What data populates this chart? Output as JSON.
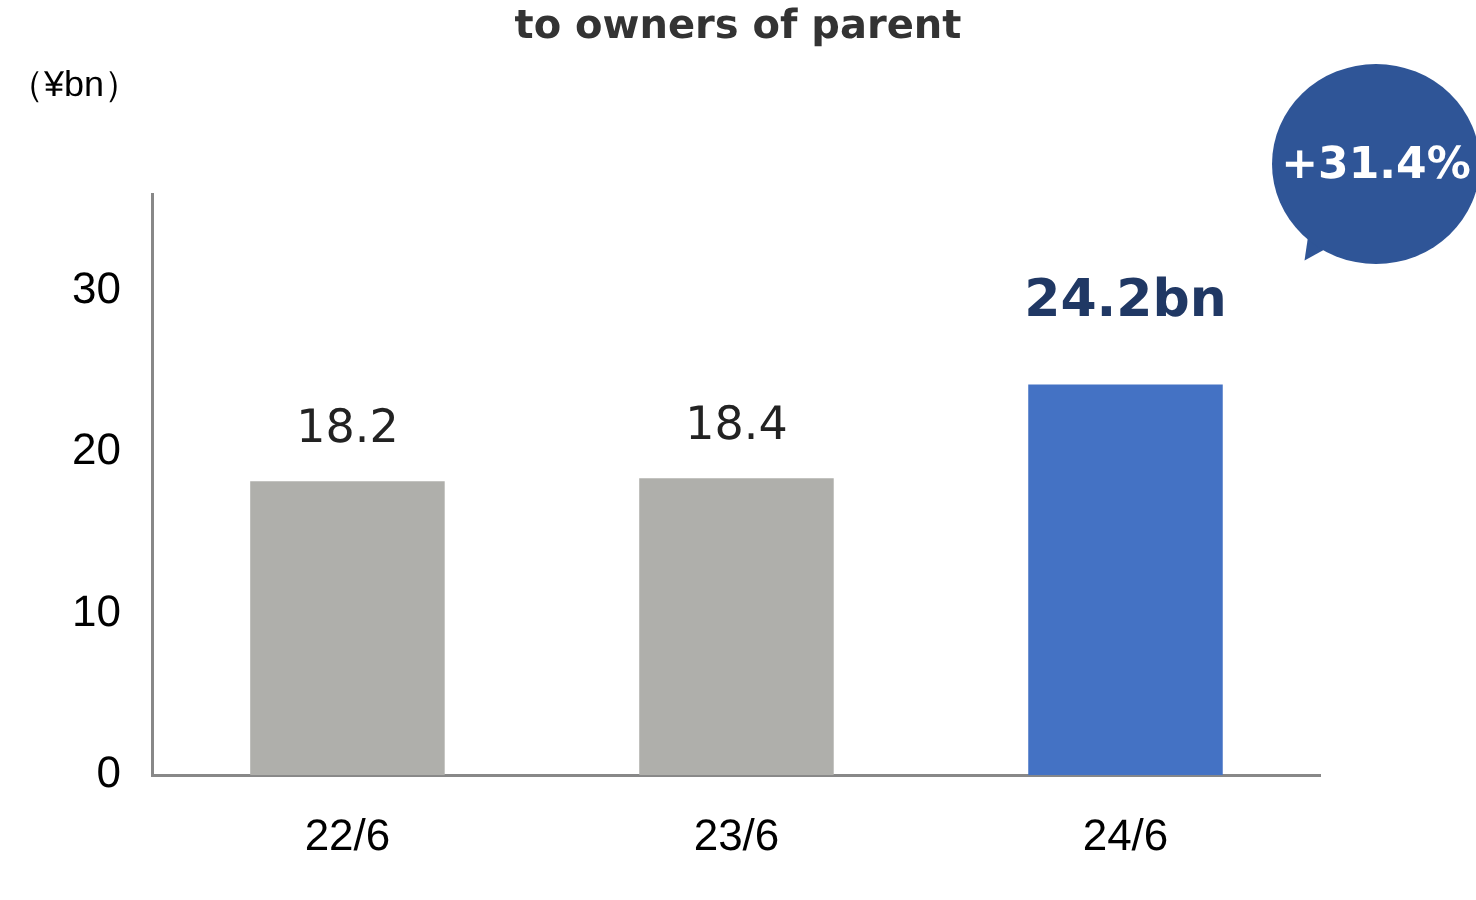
{
  "chart_data": {
    "type": "bar",
    "title": "to owners of parent",
    "ylabel": "（¥bn）",
    "categories": [
      "22/6",
      "23/6",
      "24/6"
    ],
    "values": [
      18.2,
      18.4,
      24.2
    ],
    "colors": [
      "#afafab",
      "#afafab",
      "#4472c4"
    ],
    "value_labels": [
      "18.2",
      "18.4",
      "24.2bn"
    ],
    "annotations": [
      "+31.4%"
    ],
    "ylim": [
      0,
      36
    ],
    "yticks": [
      0,
      10,
      20,
      30
    ],
    "grid": false,
    "legend": false
  }
}
